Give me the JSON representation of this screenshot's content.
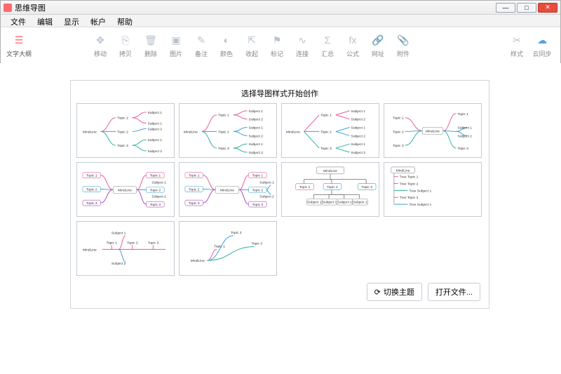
{
  "window": {
    "title": "思维导图"
  },
  "menu": {
    "items": [
      "文件",
      "编辑",
      "显示",
      "帐户",
      "帮助"
    ]
  },
  "toolbar": {
    "left": {
      "label": "文字大纲"
    },
    "items": [
      {
        "label": "移动",
        "glyph": "✥"
      },
      {
        "label": "拷贝",
        "glyph": "⎘"
      },
      {
        "label": "删除",
        "glyph": "🗑"
      },
      {
        "label": "图片",
        "glyph": "▣"
      },
      {
        "label": "备注",
        "glyph": "✎"
      },
      {
        "label": "颜色",
        "glyph": "◐"
      },
      {
        "label": "收起",
        "glyph": "⇱"
      },
      {
        "label": "标记",
        "glyph": "⚑"
      },
      {
        "label": "连接",
        "glyph": "∿"
      },
      {
        "label": "汇总",
        "glyph": "Σ"
      },
      {
        "label": "公式",
        "glyph": "fx"
      },
      {
        "label": "网址",
        "glyph": "🔗"
      },
      {
        "label": "附件",
        "glyph": "📎"
      }
    ],
    "right": [
      {
        "label": "样式",
        "glyph": "✂"
      },
      {
        "label": "云同步",
        "glyph": "☁"
      }
    ]
  },
  "panel": {
    "title": "选择导图样式开始创作",
    "footer": {
      "switch_theme": "切换主题",
      "open_file": "打开文件..."
    },
    "templates": [
      {
        "id": "right-tree-lines",
        "colors": [
          "#e85a9b",
          "#3aa0d8",
          "#2cb39a"
        ],
        "root": "MindLine",
        "topics": [
          "Topic 1",
          "Topic 2",
          "Topic 3"
        ],
        "subjects": [
          "Subject 1",
          "Subject 1",
          "Subject 2",
          "Subject 1",
          "Subject 2"
        ]
      },
      {
        "id": "right-tree-brackets",
        "colors": [
          "#e85a9b",
          "#3aa0d8",
          "#2cb39a"
        ],
        "root": "MindLine",
        "topics": [
          "Topic 1",
          "Topic 2",
          "Topic 3"
        ],
        "subjects": [
          "Subject 1",
          "Subject 2",
          "Subject 1",
          "Subject 2",
          "Subject 1",
          "Subject 2"
        ]
      },
      {
        "id": "right-tree-straight",
        "colors": [
          "#e85a9b",
          "#3aa0d8",
          "#2cb39a"
        ],
        "root": "MindLine",
        "topics": [
          "Topic 1",
          "Topic 2",
          "Topic 3"
        ],
        "subjects": [
          "Subject 1",
          "Subject 2",
          "Subject 1",
          "Subject 2",
          "Subject 1",
          "Subject 2"
        ]
      },
      {
        "id": "both-sides",
        "colors_left": [
          "#e85a9b",
          "#3aa0d8",
          "#2cb39a"
        ],
        "colors_right": [
          "#e85a9b",
          "#3aa0d8",
          "#2cb39a"
        ],
        "root": "MindLine",
        "left": [
          "Topic 1",
          "Topic 2",
          "Topic 3"
        ],
        "right": [
          "Topic 1",
          "Subject 1",
          "Subject 2",
          "Topic 3"
        ]
      },
      {
        "id": "both-sides-boxes",
        "colors": [
          "#e85a9b",
          "#3aa0d8",
          "#a94dbf"
        ],
        "root": "MindLine",
        "left": [
          "Topic 1",
          "Topic 2",
          "Topic 3"
        ],
        "right": [
          "Topic 1",
          "Subject 1",
          "Subject 2",
          "Topic 3"
        ]
      },
      {
        "id": "both-sides-rounded",
        "colors": [
          "#e85a9b",
          "#3aa0d8",
          "#a94dbf"
        ],
        "root": "MindLine",
        "left": [
          "Topic 1",
          "Topic 2",
          "Topic 3"
        ],
        "right": [
          "Topic 1",
          "Topic 2",
          "Subject 1",
          "Subject 2",
          "Topic 3"
        ]
      },
      {
        "id": "org-chart",
        "colors": [
          "#e85a9b",
          "#3aa0d8",
          "#2cb39a"
        ],
        "root": "MindLine",
        "topics": [
          "Topic 1",
          "Topic 2",
          "Topic 3"
        ],
        "subjects": [
          "Subject 1",
          "Subject 1",
          "Subject 1",
          "Subject 1"
        ]
      },
      {
        "id": "tree-outline",
        "colors": [
          "#e85a9b",
          "#3aa0d8",
          "#2cb39a"
        ],
        "root": "MindLine",
        "items": [
          "Tree Topic 1",
          "Tree Topic 2",
          "Tree Subject 1",
          "Tree Topic 3",
          "Tree Subject 1"
        ]
      },
      {
        "id": "linear",
        "colors": [
          "#e85a9b",
          "#3aa0d8"
        ],
        "root": "MindLine",
        "topics": [
          "Topic 1",
          "Topic 2",
          "Topic 3"
        ],
        "subjects": [
          "Subject 1",
          "Subject 2"
        ]
      },
      {
        "id": "upward",
        "colors": [
          "#e85a9b",
          "#3aa0d8",
          "#2cb39a"
        ],
        "root": "MindLine",
        "topics": [
          "Topic 1",
          "Topic 2",
          "Topic 3"
        ]
      }
    ]
  }
}
